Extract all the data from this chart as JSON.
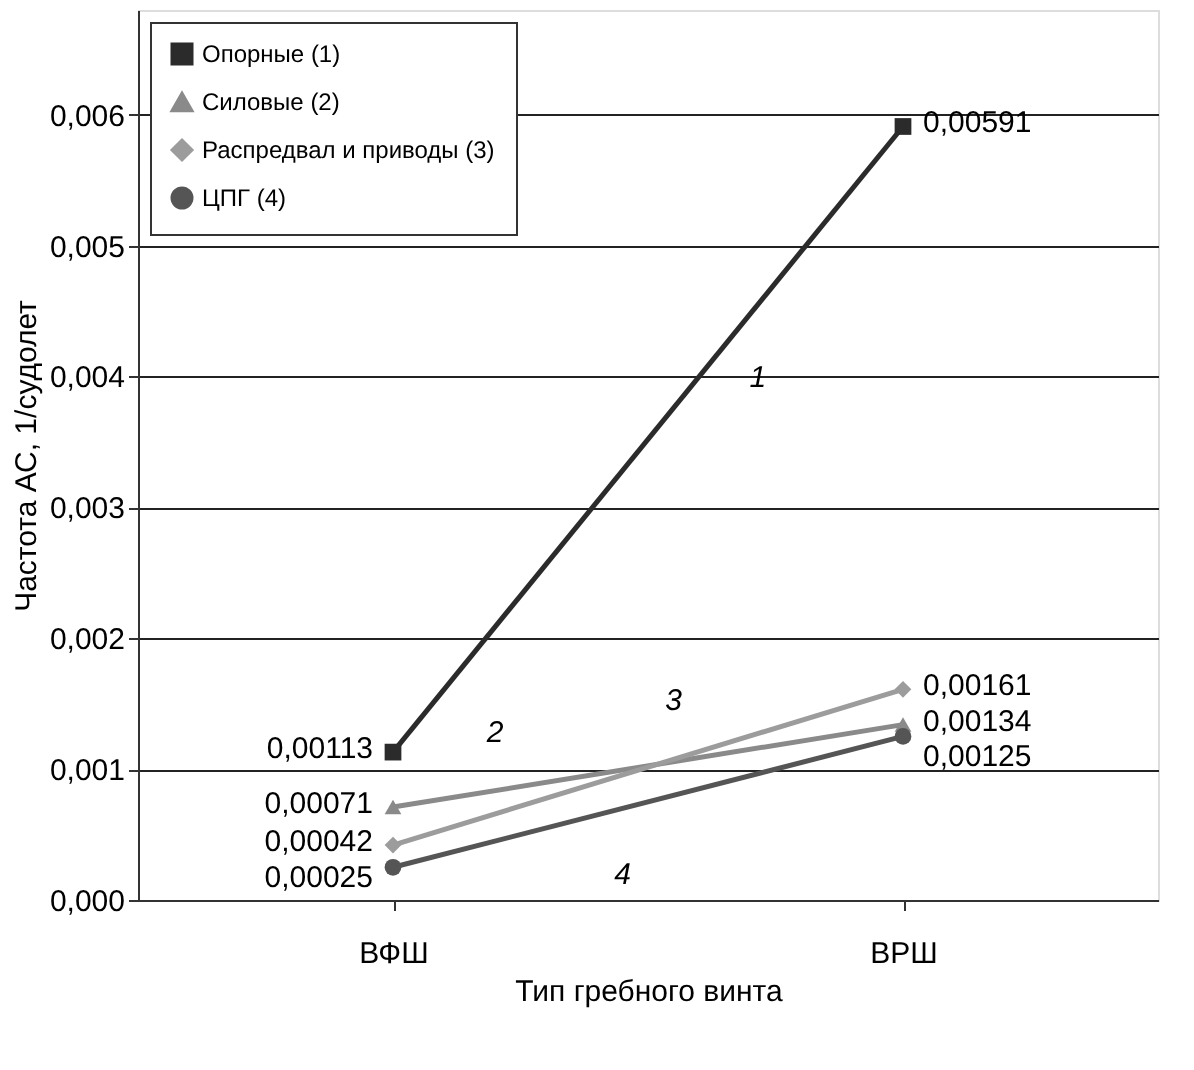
{
  "chart_data": {
    "type": "line",
    "xlabel": "Тип гребного винта",
    "ylabel": "Частота АС, 1/судолет",
    "categories": [
      "ВФШ",
      "ВРШ"
    ],
    "series": [
      {
        "name": "Опорные (1)",
        "color": "#2b2b2b",
        "marker": "square",
        "values": [
          0.00113,
          0.00591
        ],
        "value_labels": [
          "0,00113",
          "0,00591"
        ]
      },
      {
        "name": "Силовые (2)",
        "color": "#8a8a8a",
        "marker": "triangle",
        "values": [
          0.00071,
          0.00134
        ],
        "value_labels": [
          "0,00071",
          "0,00134"
        ]
      },
      {
        "name": "Распредвал и приводы (3)",
        "color": "#9c9c9c",
        "marker": "diamond",
        "values": [
          0.00042,
          0.00161
        ],
        "value_labels": [
          "0,00042",
          "0,00161"
        ]
      },
      {
        "name": "ЦПГ (4)",
        "color": "#555555",
        "marker": "circle",
        "values": [
          0.00025,
          0.00125
        ],
        "value_labels": [
          "0,00025",
          "0,00125"
        ]
      }
    ],
    "annotations": [
      "1",
      "2",
      "3",
      "4"
    ],
    "ylim": [
      0,
      0.0068
    ],
    "yticks": [
      {
        "value": 0,
        "label": "0,000"
      },
      {
        "value": 0.001,
        "label": "0,001"
      },
      {
        "value": 0.002,
        "label": "0,002"
      },
      {
        "value": 0.003,
        "label": "0,003"
      },
      {
        "value": 0.004,
        "label": "0,004"
      },
      {
        "value": 0.005,
        "label": "0,005"
      },
      {
        "value": 0.006,
        "label": "0,006"
      }
    ],
    "grid": "y",
    "legend": "top left"
  }
}
